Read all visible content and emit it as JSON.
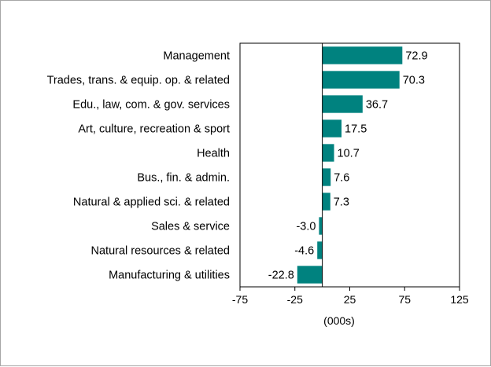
{
  "chart_data": {
    "type": "bar",
    "orientation": "horizontal",
    "categories": [
      "Management",
      "Trades, trans. & equip. op. & related",
      "Edu., law, com. & gov. services",
      "Art, culture, recreation & sport",
      "Health",
      "Bus., fin. & admin.",
      "Natural & applied sci. & related",
      "Sales & service",
      "Natural resources & related",
      "Manufacturing & utilities"
    ],
    "values": [
      72.9,
      70.3,
      36.7,
      17.5,
      10.7,
      7.6,
      7.3,
      -3.0,
      -4.6,
      -22.8
    ],
    "value_labels": [
      "72.9",
      "70.3",
      "36.7",
      "17.5",
      "10.7",
      "7.6",
      "7.3",
      "-3.0",
      "-4.6",
      "-22.8"
    ],
    "xlabel": "(000s)",
    "xlim": [
      -75,
      125
    ],
    "xticks": [
      -75,
      -25,
      25,
      75,
      125
    ],
    "xtick_labels": [
      "-75",
      "-25",
      "25",
      "75",
      "125"
    ],
    "bar_color": "#00827f",
    "grid": false,
    "legend": "none"
  }
}
